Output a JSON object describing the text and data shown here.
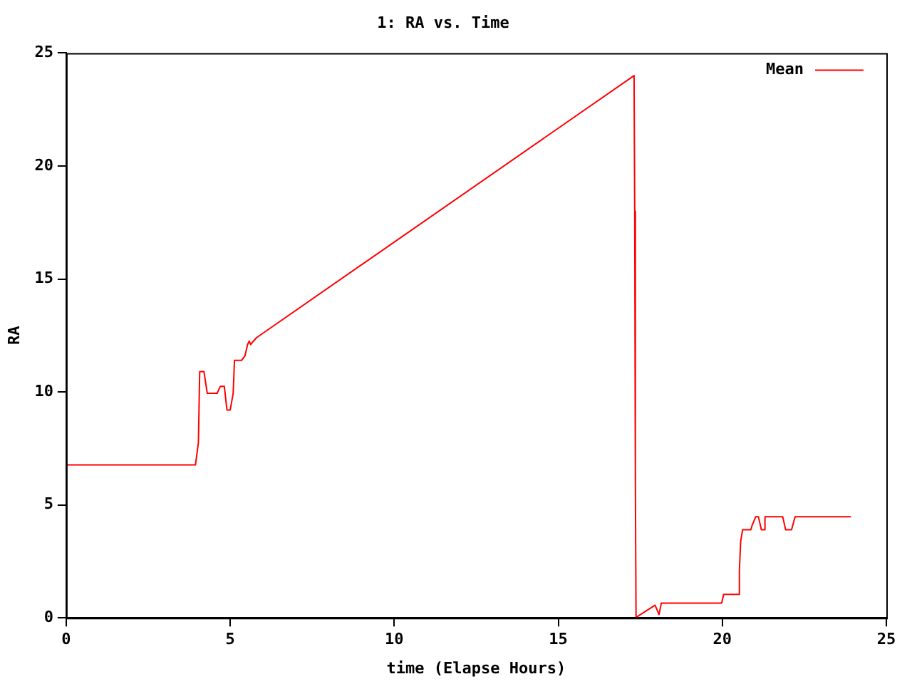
{
  "chart_data": {
    "type": "line",
    "title": "1: RA vs. Time",
    "xlabel": "time (Elapse Hours)",
    "ylabel": "RA",
    "xlim": [
      0,
      25
    ],
    "xticks": [
      0,
      5,
      10,
      15,
      20,
      25
    ],
    "ylim": [
      0,
      25
    ],
    "yticks": [
      0,
      5,
      10,
      15,
      20,
      25
    ],
    "grid": false,
    "legend": "top right",
    "marker": "none",
    "series": [
      {
        "name": "Mean",
        "color": "#ff0000",
        "x": [
          0,
          3.94,
          4.03,
          4.07,
          4.2,
          4.3,
          4.6,
          4.7,
          4.82,
          4.9,
          5.0,
          5.09,
          5.13,
          5.35,
          5.45,
          5.53,
          5.58,
          5.62,
          5.8,
          17.31,
          17.33,
          17.35,
          17.37,
          17.4,
          17.95,
          18.07,
          18.14,
          19.98,
          20.04,
          20.5,
          20.52,
          20.56,
          20.62,
          20.87,
          20.9,
          21.02,
          21.1,
          21.19,
          21.27,
          21.3,
          21.84,
          21.93,
          22.11,
          22.22,
          23.92
        ],
        "values": [
          6.77,
          6.77,
          7.75,
          10.9,
          10.9,
          9.94,
          9.94,
          10.25,
          10.25,
          9.2,
          9.2,
          9.94,
          11.4,
          11.4,
          11.6,
          12.1,
          12.25,
          12.1,
          12.4,
          24.0,
          18.0,
          6.0,
          0.05,
          0.05,
          0.56,
          0.15,
          0.65,
          0.65,
          1.04,
          1.04,
          2.1,
          3.4,
          3.9,
          3.9,
          4.06,
          4.48,
          4.48,
          3.9,
          3.9,
          4.48,
          4.48,
          3.9,
          3.9,
          4.48,
          4.48
        ]
      }
    ]
  }
}
